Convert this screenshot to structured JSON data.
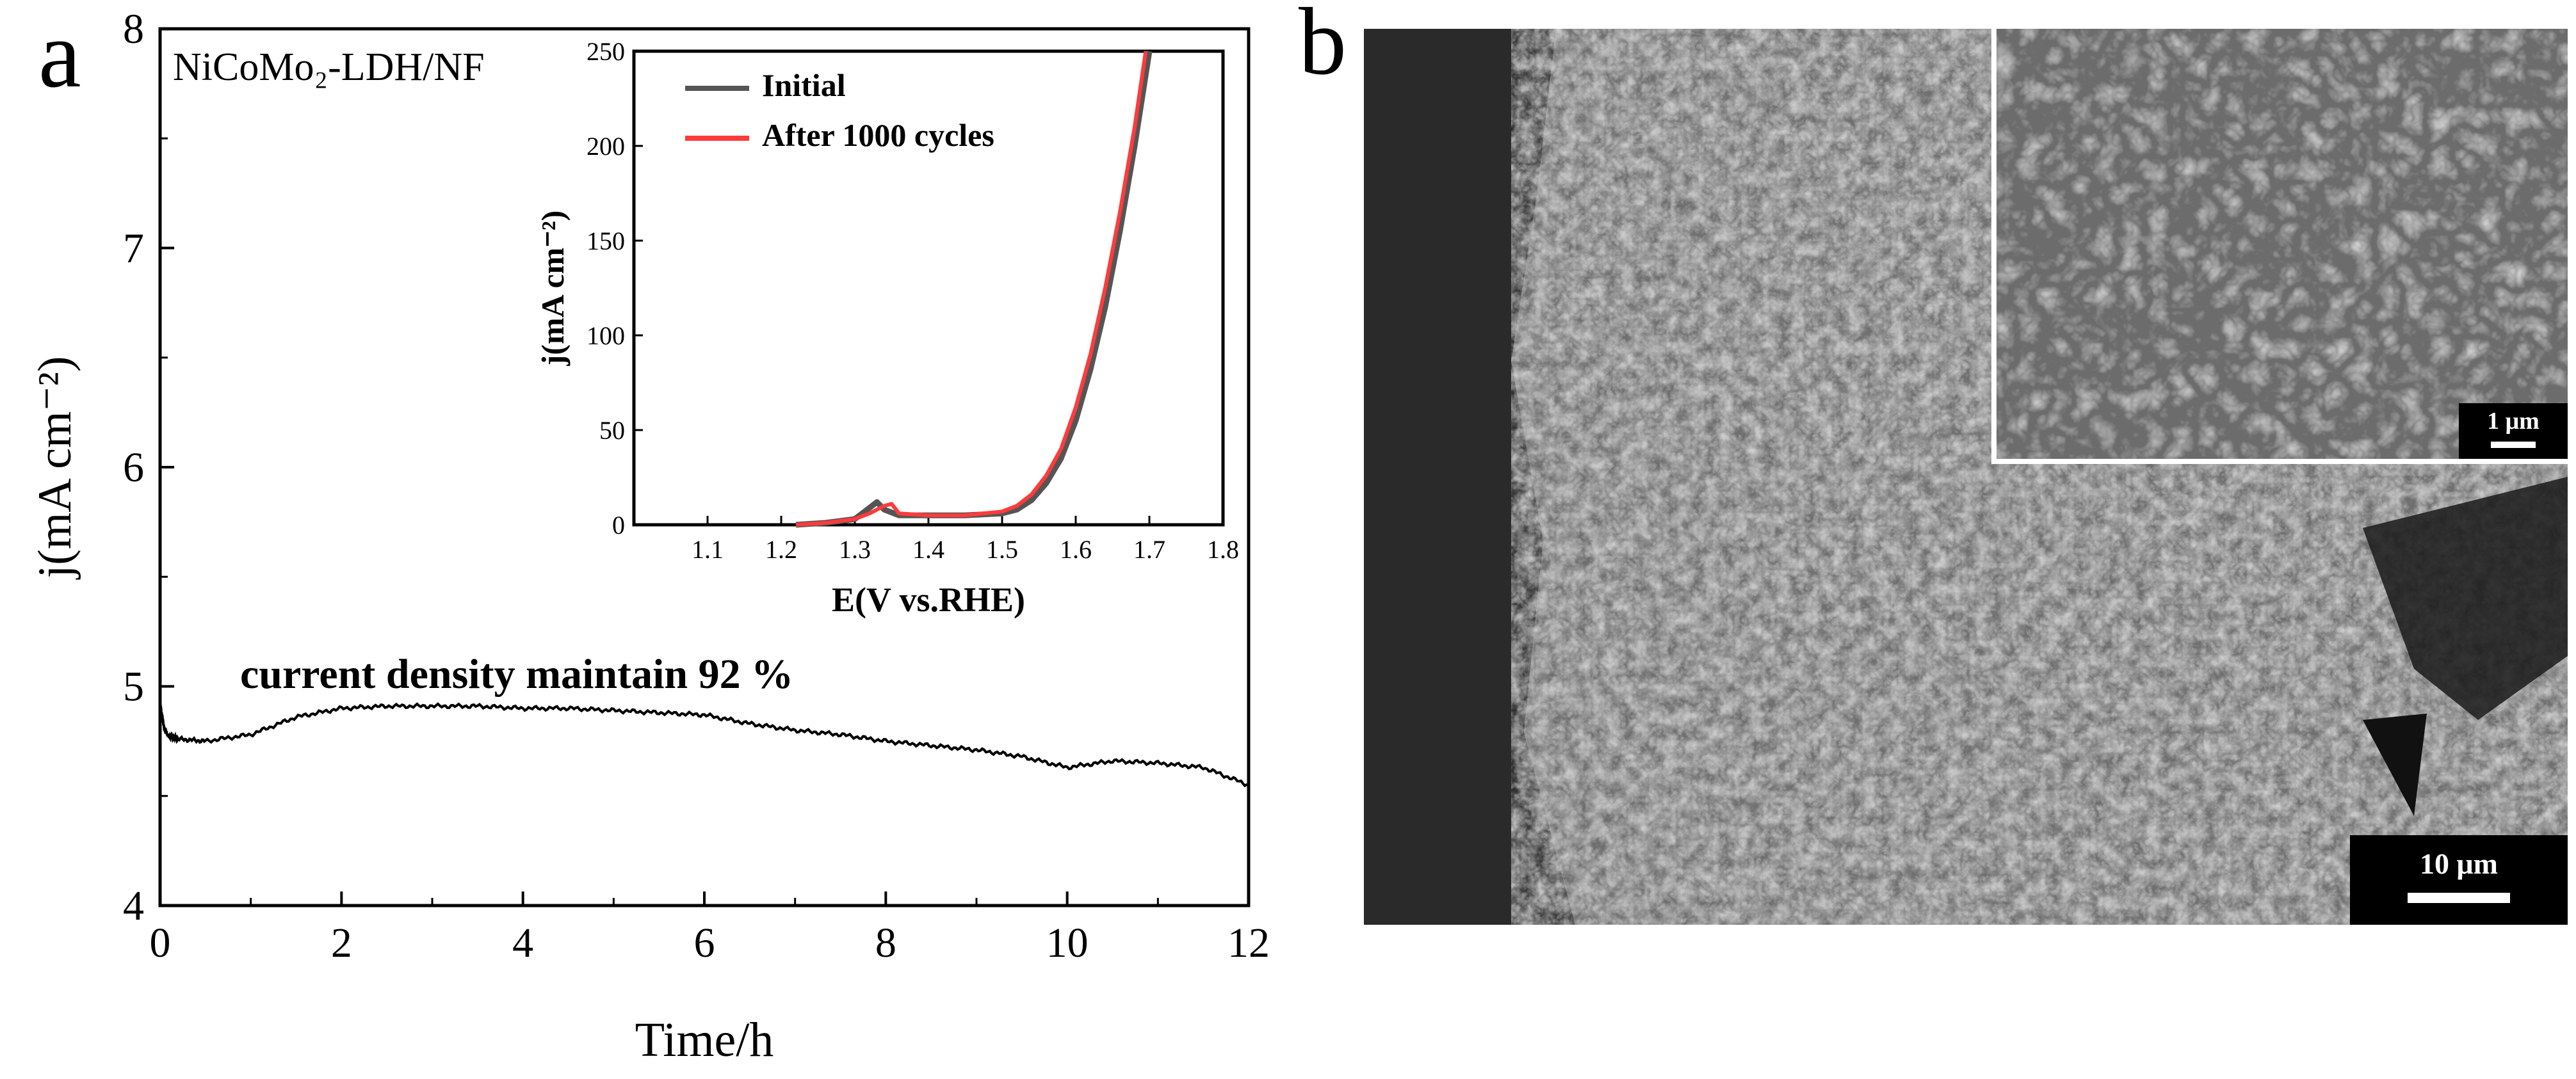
{
  "panel_labels": {
    "a": "a",
    "b": "b"
  },
  "chart_data": [
    {
      "type": "line",
      "panel": "a",
      "title": "",
      "sample_label": "NiCoMo₂-LDH/NF",
      "xlabel": "Time/h",
      "ylabel": "j(mA cm⁻²)",
      "xlim": [
        0,
        12
      ],
      "ylim": [
        4,
        8
      ],
      "xticks": [
        0,
        2,
        4,
        6,
        8,
        10,
        12
      ],
      "yticks": [
        4,
        5,
        6,
        7,
        8
      ],
      "annotation": "current density maintain 92 %",
      "series": [
        {
          "color": "#000000",
          "x": [
            0,
            0.05,
            0.1,
            0.2,
            0.5,
            1,
            1.5,
            2,
            2.5,
            3,
            3.5,
            4,
            4.5,
            5,
            5.5,
            6,
            6.5,
            7,
            7.5,
            8,
            8.5,
            9,
            9.5,
            10,
            10.5,
            11,
            11.5,
            12
          ],
          "y": [
            4.92,
            4.8,
            4.77,
            4.76,
            4.75,
            4.78,
            4.86,
            4.9,
            4.91,
            4.91,
            4.91,
            4.9,
            4.9,
            4.89,
            4.88,
            4.87,
            4.83,
            4.8,
            4.78,
            4.75,
            4.73,
            4.71,
            4.68,
            4.63,
            4.66,
            4.65,
            4.63,
            4.55
          ]
        }
      ]
    },
    {
      "type": "line",
      "panel": "a-inset",
      "title": "",
      "xlabel": "E(V vs.RHE)",
      "ylabel": "j(mA cm⁻²)",
      "xlim": [
        1.0,
        1.8
      ],
      "ylim": [
        0,
        250
      ],
      "xticks": [
        1.1,
        1.2,
        1.3,
        1.4,
        1.5,
        1.6,
        1.7,
        1.8
      ],
      "yticks": [
        0,
        50,
        100,
        150,
        200,
        250
      ],
      "legend_position": "top-left",
      "series": [
        {
          "name": "Initial",
          "color": "#555555",
          "x": [
            1.22,
            1.26,
            1.3,
            1.32,
            1.33,
            1.34,
            1.36,
            1.4,
            1.45,
            1.5,
            1.52,
            1.54,
            1.56,
            1.58,
            1.6,
            1.62,
            1.64,
            1.66,
            1.68,
            1.7
          ],
          "y": [
            0,
            1,
            3,
            9,
            12,
            8,
            5,
            5,
            5,
            6,
            8,
            13,
            22,
            35,
            55,
            82,
            115,
            155,
            200,
            250
          ]
        },
        {
          "name": "After 1000 cycles",
          "color": "#ff3b3b",
          "x": [
            1.22,
            1.26,
            1.3,
            1.32,
            1.34,
            1.35,
            1.36,
            1.4,
            1.45,
            1.5,
            1.52,
            1.54,
            1.56,
            1.58,
            1.6,
            1.62,
            1.64,
            1.66,
            1.68,
            1.695
          ],
          "y": [
            0,
            1,
            3,
            6,
            10,
            11,
            6,
            5,
            5,
            7,
            10,
            16,
            26,
            40,
            62,
            90,
            125,
            165,
            210,
            250
          ]
        }
      ]
    }
  ],
  "images": {
    "main": {
      "description_icon": "sem-micrograph-icon",
      "scalebar_label": "10 μm"
    },
    "inset": {
      "description_icon": "sem-micrograph-inset-icon",
      "scalebar_label": "1 μm"
    }
  }
}
